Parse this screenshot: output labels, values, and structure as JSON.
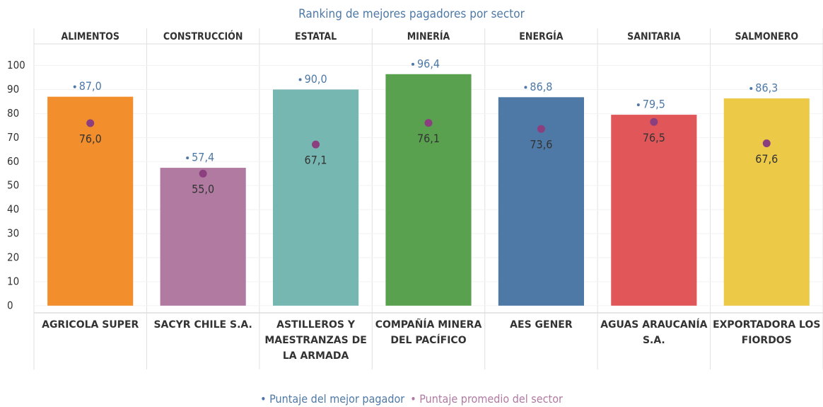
{
  "chart_data": {
    "type": "bar",
    "title": "Ranking de mejores pagadores por sector",
    "sectors": [
      "ALIMENTOS",
      "CONSTRUCCIÓN",
      "ESTATAL",
      "MINERÍA",
      "ENERGÍA",
      "SANITARIA",
      "SALMONERO"
    ],
    "categories": [
      "AGRICOLA SUPER",
      "SACYR CHILE S.A.",
      "ASTILLEROS Y MAESTRANZAS DE LA ARMADA",
      "COMPAÑÍA MINERA DEL PACÍFICO",
      "AES GENER",
      "AGUAS ARAUCANÍA S.A.",
      "EXPORTADORA LOS FIORDOS"
    ],
    "colors": [
      "#f28e2b",
      "#b07aa1",
      "#76b7b2",
      "#59a14f",
      "#4e79a7",
      "#e15759",
      "#edc948"
    ],
    "series": [
      {
        "name": "Puntaje del mejor pagador",
        "color": "#4e79a7",
        "values": [
          87.0,
          57.4,
          90.0,
          96.4,
          86.8,
          79.5,
          86.3
        ],
        "value_labels": [
          "87,0",
          "57,4",
          "90,0",
          "96,4",
          "86,8",
          "79,5",
          "86,3"
        ]
      },
      {
        "name": "Puntaje promedio del sector",
        "color": "#8b3f7f",
        "values": [
          76.0,
          55.0,
          67.1,
          76.1,
          73.6,
          76.5,
          67.6
        ],
        "value_labels": [
          "76,0",
          "55,0",
          "67,1",
          "76,1",
          "73,6",
          "76,5",
          "67,6"
        ]
      }
    ],
    "ylim": [
      -3,
      109
    ],
    "yticks": [
      0,
      10,
      20,
      30,
      40,
      50,
      60,
      70,
      80,
      90,
      100
    ],
    "grid": true
  }
}
